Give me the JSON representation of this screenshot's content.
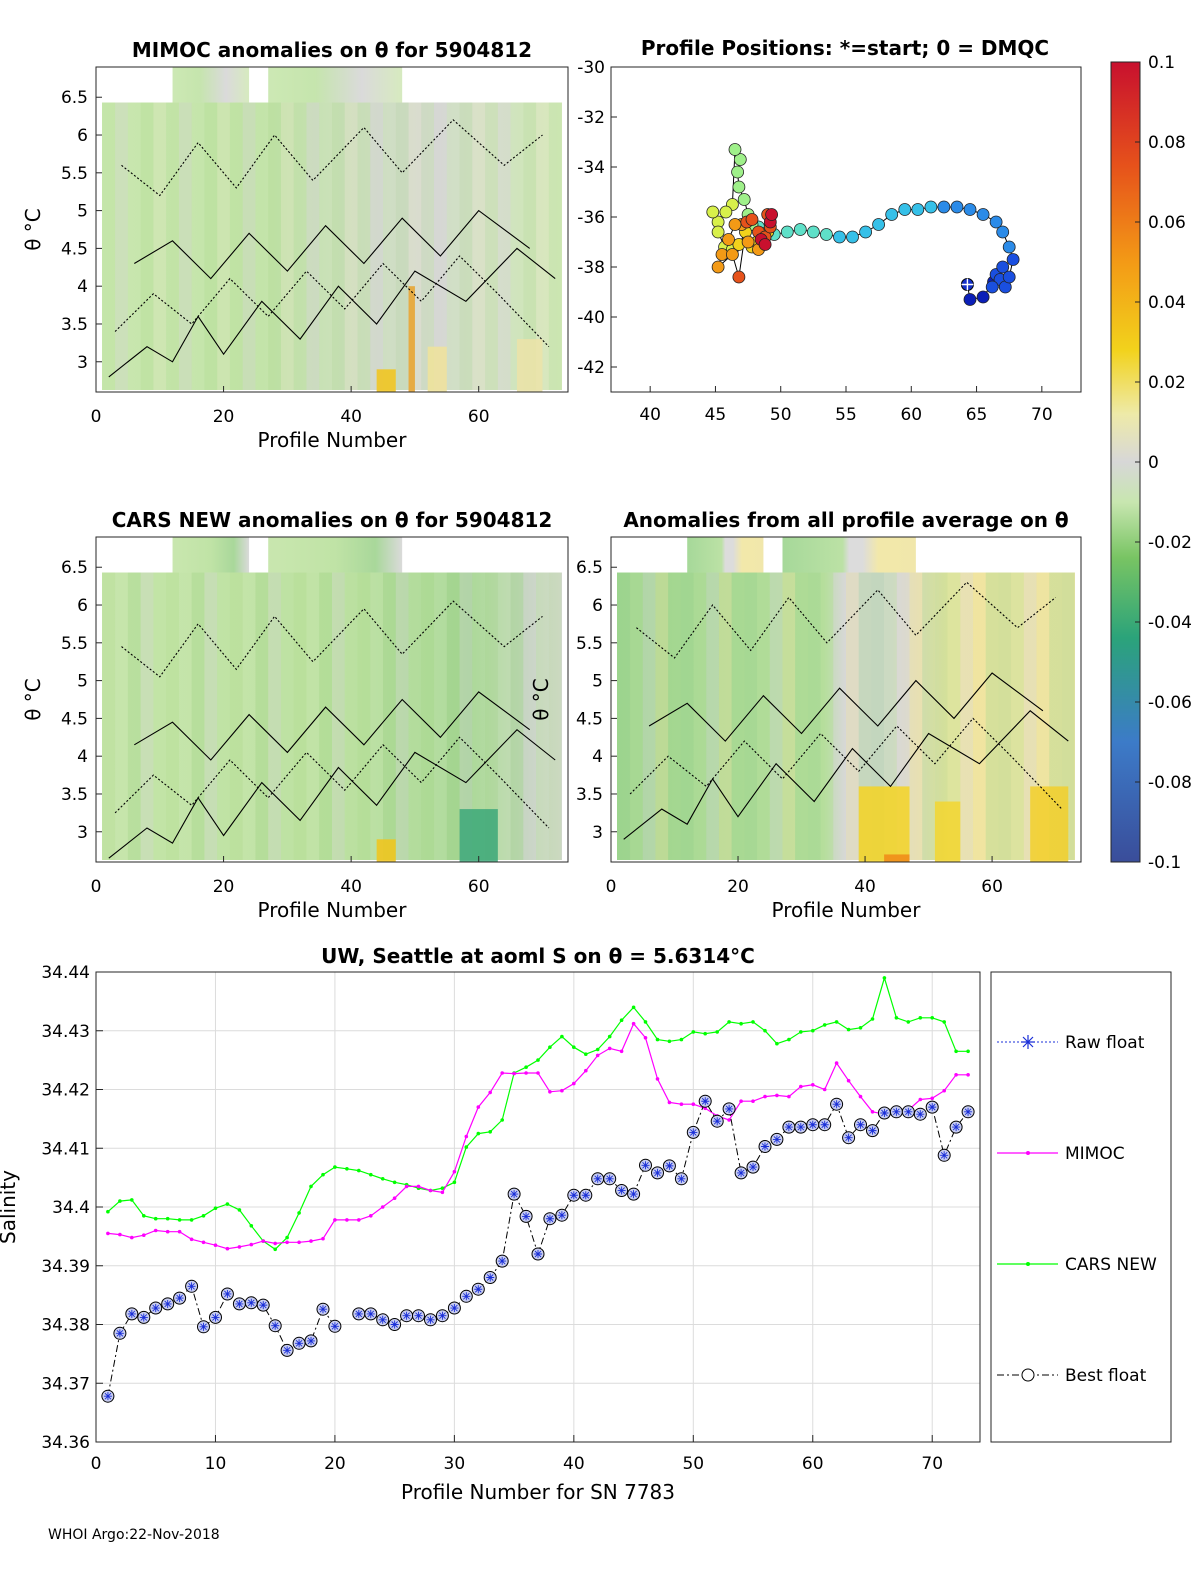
{
  "footer": "WHOI Argo:22-Nov-2018",
  "colorbar": {
    "ticks": [
      "0.1",
      "0.08",
      "0.06",
      "0.04",
      "0.02",
      "0",
      "-0.02",
      "-0.04",
      "-0.06",
      "-0.08",
      "-0.1"
    ],
    "range": [
      -0.1,
      0.1
    ]
  },
  "chart_data": [
    {
      "id": "mimoc",
      "type": "heatmap",
      "title": "MIMOC anomalies on θ  for 5904812",
      "xlabel": "Profile Number",
      "ylabel": "θ °C",
      "xticks": [
        "0",
        "20",
        "40",
        "60"
      ],
      "yticks": [
        "6.5",
        "6",
        "5.5",
        "5",
        "4.5",
        "4",
        "3.5",
        "3"
      ],
      "xlim": [
        0,
        74
      ],
      "ylim": [
        2.6,
        6.9
      ]
    },
    {
      "id": "positions",
      "type": "scatter",
      "title": "Profile Positions: *=start; 0 = DMQC",
      "xticks": [
        "40",
        "45",
        "50",
        "55",
        "60",
        "65",
        "70"
      ],
      "yticks": [
        "-30",
        "-32",
        "-34",
        "-36",
        "-38",
        "-40",
        "-42"
      ],
      "xlim": [
        37,
        73
      ],
      "ylim": [
        -43,
        -30
      ],
      "track": [
        [
          64.3,
          -38.7
        ],
        [
          64.5,
          -39.3
        ],
        [
          65.5,
          -39.2
        ],
        [
          66.3,
          -38.6
        ],
        [
          66.5,
          -38.3
        ],
        [
          67,
          -38
        ],
        [
          66.8,
          -38.5
        ],
        [
          66.2,
          -38.8
        ],
        [
          67.2,
          -38.8
        ],
        [
          67.5,
          -38.4
        ],
        [
          67.8,
          -37.7
        ],
        [
          67.5,
          -37.2
        ],
        [
          67,
          -36.6
        ],
        [
          66.5,
          -36.2
        ],
        [
          65.5,
          -35.9
        ],
        [
          64.5,
          -35.7
        ],
        [
          63.5,
          -35.6
        ],
        [
          62.5,
          -35.6
        ],
        [
          61.5,
          -35.6
        ],
        [
          60.5,
          -35.7
        ],
        [
          59.5,
          -35.7
        ],
        [
          58.5,
          -35.9
        ],
        [
          57.5,
          -36.3
        ],
        [
          56.5,
          -36.6
        ],
        [
          55.5,
          -36.8
        ],
        [
          54.5,
          -36.8
        ],
        [
          53.5,
          -36.7
        ],
        [
          52.5,
          -36.6
        ],
        [
          51.5,
          -36.5
        ],
        [
          50.5,
          -36.6
        ],
        [
          49.5,
          -36.7
        ],
        [
          49,
          -36.5
        ],
        [
          48.3,
          -36.4
        ],
        [
          47.8,
          -36.3
        ],
        [
          47.5,
          -35.9
        ],
        [
          47.2,
          -35.3
        ],
        [
          46.8,
          -34.8
        ],
        [
          46.7,
          -34.2
        ],
        [
          46.9,
          -33.7
        ],
        [
          46.5,
          -33.3
        ],
        [
          46.3,
          -35.5
        ],
        [
          45.8,
          -35.8
        ],
        [
          45.2,
          -36.2
        ],
        [
          44.8,
          -35.8
        ],
        [
          45.2,
          -36.6
        ],
        [
          45.7,
          -37.2
        ],
        [
          46.3,
          -37.3
        ],
        [
          46.8,
          -37.1
        ],
        [
          47.3,
          -36.6
        ],
        [
          47.8,
          -37.2
        ],
        [
          48.2,
          -37
        ],
        [
          48.6,
          -36.8
        ],
        [
          49,
          -36.6
        ],
        [
          48.7,
          -36.9
        ],
        [
          48.3,
          -37.3
        ],
        [
          47.5,
          -37
        ],
        [
          47,
          -36.3
        ],
        [
          46.5,
          -36.3
        ],
        [
          46,
          -36.9
        ],
        [
          45.5,
          -37.5
        ],
        [
          45.2,
          -38
        ],
        [
          46.3,
          -37.5
        ],
        [
          46.8,
          -38.4
        ],
        [
          47.4,
          -36.2
        ],
        [
          47.8,
          -36.1
        ],
        [
          48.3,
          -36.6
        ],
        [
          48.8,
          -36.8
        ],
        [
          49,
          -35.9
        ],
        [
          49.2,
          -36.4
        ],
        [
          48.5,
          -36.9
        ],
        [
          48.8,
          -37.1
        ],
        [
          49.2,
          -36.2
        ],
        [
          49.3,
          -35.9
        ]
      ]
    },
    {
      "id": "cars",
      "type": "heatmap",
      "title": "CARS NEW anomalies on θ for 5904812",
      "xlabel": "Profile Number",
      "ylabel": "θ °C",
      "xticks": [
        "0",
        "20",
        "40",
        "60"
      ],
      "yticks": [
        "6.5",
        "6",
        "5.5",
        "5",
        "4.5",
        "4",
        "3.5",
        "3"
      ],
      "xlim": [
        0,
        74
      ],
      "ylim": [
        2.6,
        6.9
      ]
    },
    {
      "id": "allavg",
      "type": "heatmap",
      "title": "Anomalies from all profile average on θ",
      "xlabel": "Profile Number",
      "ylabel": "θ °C",
      "xticks": [
        "0",
        "20",
        "40",
        "60"
      ],
      "yticks": [
        "6.5",
        "6",
        "5.5",
        "5",
        "4.5",
        "4",
        "3.5",
        "3"
      ],
      "xlim": [
        0,
        74
      ],
      "ylim": [
        2.6,
        6.9
      ]
    },
    {
      "id": "salinity",
      "type": "line",
      "title": "UW, Seattle at aoml S on θ = 5.6314°C",
      "xlabel": "Profile Number for SN 7783",
      "ylabel": "Salinity",
      "xlim": [
        0,
        74
      ],
      "ylim": [
        34.36,
        34.44
      ],
      "xticks": [
        "0",
        "10",
        "20",
        "30",
        "40",
        "50",
        "60",
        "70"
      ],
      "yticks": [
        "34.44",
        "34.43",
        "34.42",
        "34.41",
        "34.4",
        "34.39",
        "34.38",
        "34.37",
        "34.36"
      ],
      "grid": true,
      "legend": [
        "Raw float",
        "MIMOC",
        "CARS NEW",
        "Best float"
      ],
      "series": [
        {
          "name": "Best float",
          "color": "#000000",
          "values": [
            34.3678,
            34.3785,
            34.3818,
            34.3812,
            34.3828,
            34.3835,
            34.3845,
            34.3865,
            34.3796,
            34.3812,
            34.3852,
            34.3835,
            34.3837,
            34.3833,
            34.3798,
            34.3756,
            34.3768,
            34.3772,
            34.3826,
            34.3797,
            null,
            34.3818,
            34.3818,
            34.3808,
            34.38,
            34.3815,
            34.3815,
            34.3808,
            34.3815,
            34.3828,
            34.3848,
            34.386,
            34.388,
            34.3908,
            34.4022,
            34.3984,
            34.392,
            34.398,
            34.3986,
            34.402,
            34.402,
            34.4048,
            34.4048,
            34.4028,
            34.4022,
            34.4071,
            34.4058,
            34.407,
            34.4048,
            34.4127,
            34.418,
            34.4146,
            34.4167,
            34.4058,
            34.4068,
            34.4103,
            34.4115,
            34.4136,
            34.4136,
            34.414,
            34.414,
            34.4175,
            34.4118,
            34.414,
            34.413,
            34.416,
            34.4162,
            34.4162,
            34.4158,
            34.417,
            34.4088,
            34.4136,
            34.4162
          ]
        },
        {
          "name": "MIMOC",
          "color": "#ff00ff",
          "values": [
            34.3955,
            34.3953,
            34.3948,
            34.3952,
            34.396,
            34.3958,
            34.3958,
            34.3945,
            34.394,
            34.3935,
            34.3929,
            34.3932,
            34.3936,
            34.3942,
            34.3938,
            34.394,
            34.394,
            34.3942,
            34.3946,
            34.3978,
            34.3978,
            34.3978,
            34.3985,
            34.4,
            34.4015,
            34.4035,
            34.4035,
            34.4028,
            34.4025,
            34.406,
            34.412,
            34.417,
            34.4195,
            34.4228,
            34.4227,
            34.4228,
            34.4228,
            34.4196,
            34.4198,
            34.421,
            34.4232,
            34.4258,
            34.427,
            34.4265,
            34.4312,
            34.4288,
            34.4218,
            34.4178,
            34.4175,
            34.4175,
            34.4168,
            34.4155,
            34.4148,
            34.418,
            34.418,
            34.4188,
            34.419,
            34.4188,
            34.4205,
            34.4208,
            34.42,
            34.4245,
            34.4215,
            34.4188,
            34.4162,
            34.4158,
            34.416,
            34.4165,
            34.4183,
            34.4185,
            34.4198,
            34.4225,
            34.4225
          ]
        },
        {
          "name": "CARS NEW",
          "color": "#00ff00",
          "values": [
            34.3992,
            34.401,
            34.4012,
            34.3985,
            34.398,
            34.398,
            34.3978,
            34.3978,
            34.3985,
            34.3998,
            34.4005,
            34.3995,
            34.3968,
            34.3942,
            34.3928,
            34.3948,
            34.399,
            34.4035,
            34.4055,
            34.4068,
            34.4065,
            34.4062,
            34.4055,
            34.4048,
            34.4042,
            34.4038,
            34.4032,
            34.4028,
            34.4032,
            34.4042,
            34.4102,
            34.4125,
            34.4128,
            34.4148,
            34.4228,
            34.4238,
            34.425,
            34.4272,
            34.429,
            34.4272,
            34.426,
            34.4268,
            34.429,
            34.4318,
            34.434,
            34.4315,
            34.4285,
            34.4282,
            34.4285,
            34.4298,
            34.4295,
            34.4298,
            34.4315,
            34.4312,
            34.4315,
            34.43,
            34.4278,
            34.4285,
            34.4298,
            34.43,
            34.431,
            34.4315,
            34.4302,
            34.4305,
            34.432,
            34.439,
            34.4322,
            34.4315,
            34.4322,
            34.4322,
            34.4315,
            34.4265,
            34.4265
          ]
        }
      ]
    }
  ]
}
